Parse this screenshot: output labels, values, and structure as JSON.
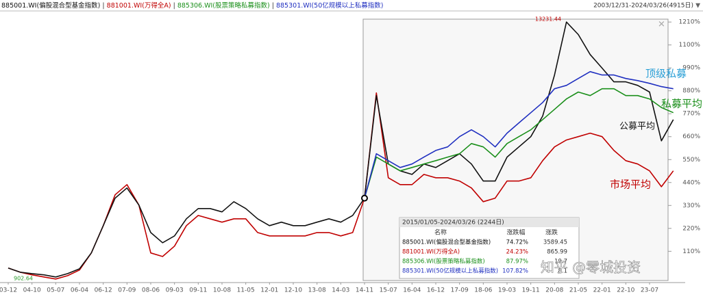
{
  "chart_data": {
    "type": "line",
    "legend": [
      "885001.WI(偏股混合型基金指数)",
      "881001.WI(万得全A)",
      "885306.WI(股票策略私募指数)",
      "885301.WI(50亿规模以上私募指数)"
    ],
    "date_range": "2003/12/31-2024/03/26(4915日)",
    "categories": [
      "03-12",
      null,
      "04-10",
      null,
      "05-07",
      null,
      "06-04",
      null,
      "06-12",
      null,
      "07-09",
      null,
      "08-06",
      null,
      "09-03",
      null,
      "09-11",
      null,
      "10-08",
      null,
      "11-05",
      null,
      "12-01",
      null,
      "12-10",
      null,
      "13-08",
      null,
      "14-03",
      null,
      "14-11",
      null,
      "15-07",
      null,
      "16-04",
      null,
      "16-12",
      null,
      "17-09",
      null,
      "18-06",
      null,
      "19-03",
      null,
      "19-11",
      null,
      "20-08",
      null,
      "21-05",
      null,
      "22-01",
      null,
      "22-10",
      null,
      "23-07",
      null,
      null
    ],
    "series": [
      {
        "name": "市场平均",
        "color": "#c00000",
        "values": [
          30,
          10,
          -3,
          -13,
          -23,
          -7,
          20,
          102,
          233,
          381,
          430,
          332,
          102,
          85,
          135,
          233,
          282,
          266,
          250,
          266,
          266,
          200,
          184,
          184,
          184,
          184,
          200,
          200,
          184,
          200,
          365,
          870,
          463,
          430,
          430,
          479,
          463,
          463,
          447,
          414,
          348,
          365,
          447,
          447,
          463,
          545,
          611,
          644,
          660,
          677,
          660,
          594,
          545,
          529,
          496,
          420,
          496
        ]
      },
      {
        "name": "公募平均",
        "color": "#111111",
        "values": [
          30,
          10,
          3,
          -3,
          -13,
          3,
          26,
          102,
          233,
          365,
          414,
          332,
          200,
          151,
          184,
          266,
          315,
          315,
          299,
          348,
          315,
          266,
          233,
          250,
          233,
          233,
          250,
          266,
          250,
          282,
          365,
          857,
          529,
          496,
          479,
          529,
          512,
          545,
          578,
          529,
          447,
          447,
          562,
          611,
          660,
          759,
          956,
          1210,
          1150,
          1054,
          989,
          923,
          923,
          906,
          874,
          640,
          742
        ]
      },
      {
        "name": "私募平均",
        "color": "#1a8f1a",
        "values": [
          null,
          null,
          null,
          null,
          null,
          null,
          null,
          null,
          null,
          null,
          null,
          null,
          null,
          null,
          null,
          null,
          null,
          null,
          null,
          null,
          null,
          null,
          null,
          null,
          null,
          null,
          null,
          null,
          null,
          null,
          365,
          562,
          529,
          496,
          512,
          529,
          545,
          562,
          578,
          627,
          611,
          562,
          627,
          660,
          693,
          742,
          791,
          841,
          874,
          857,
          890,
          890,
          857,
          857,
          841,
          800,
          775
        ]
      },
      {
        "name": "顶级私募",
        "color": "#1f2fc0",
        "values": [
          null,
          null,
          null,
          null,
          null,
          null,
          null,
          null,
          null,
          null,
          null,
          null,
          null,
          null,
          null,
          null,
          null,
          null,
          null,
          null,
          null,
          null,
          null,
          null,
          null,
          null,
          null,
          null,
          null,
          null,
          365,
          578,
          545,
          512,
          529,
          562,
          594,
          611,
          660,
          693,
          660,
          611,
          677,
          726,
          775,
          824,
          890,
          906,
          939,
          972,
          956,
          956,
          939,
          929,
          916,
          900,
          890
        ]
      }
    ],
    "ylim": [
      -40,
      1250
    ],
    "yticks": [
      {
        "value": 1210,
        "label": "1210%"
      },
      {
        "value": 1100,
        "label": "1100%"
      },
      {
        "value": 990,
        "label": "990%"
      },
      {
        "value": 880,
        "label": "880%"
      },
      {
        "value": 770,
        "label": "770%"
      },
      {
        "value": 660,
        "label": "660%"
      },
      {
        "value": 550,
        "label": "550%"
      },
      {
        "value": 440,
        "label": "440%"
      },
      {
        "value": 330,
        "label": "330%"
      },
      {
        "value": 220,
        "label": "220%"
      },
      {
        "value": 110,
        "label": "110%"
      }
    ],
    "grid": false,
    "annotations": [
      "13231.44",
      "902.64"
    ],
    "table": {
      "title": "2015/01/05-2024/03/26 (2244日)",
      "columns": [
        "名称",
        "涨跌幅",
        "涨跌"
      ],
      "rows": [
        [
          "885001.WI(偏股混合型基金指数)",
          "74.72%",
          "3589.45"
        ],
        [
          "881001.WI(万得全A)",
          "24.23%",
          "865.99"
        ],
        [
          "885306.WI(股票策略私募指数)",
          "87.97%",
          "19.7"
        ],
        [
          "885301.WI(50亿规模以上私募指数)",
          "107.82%",
          "8.1"
        ]
      ]
    },
    "watermark": "知乎 @零城投资"
  }
}
